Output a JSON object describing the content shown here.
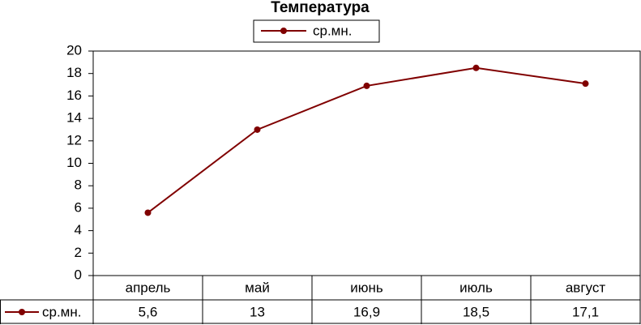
{
  "chart_data": {
    "type": "line",
    "title": "Температура",
    "categories": [
      "апрель",
      "май",
      "июнь",
      "июль",
      "август"
    ],
    "series": [
      {
        "name": "ср.мн.",
        "color": "#800000",
        "values": [
          5.6,
          13,
          16.9,
          18.5,
          17.1
        ],
        "value_labels": [
          "5,6",
          "13",
          "16,9",
          "18,5",
          "17,1"
        ]
      }
    ],
    "ylim": [
      0,
      20
    ],
    "yticks": [
      0,
      2,
      4,
      6,
      8,
      10,
      12,
      14,
      16,
      18,
      20
    ],
    "grid": false,
    "legend": "top",
    "data_table": true
  }
}
